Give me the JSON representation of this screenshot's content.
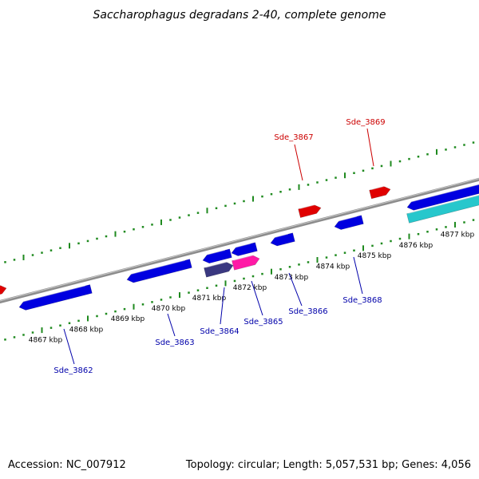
{
  "title": "Saccharophagus degradans 2-40, complete genome",
  "footer": {
    "accession": "Accession: NC_007912",
    "summary": "Topology: circular; Length: 5,057,531 bp; Genes: 4,056"
  },
  "colors": {
    "backbone": "#8c8c8c",
    "tick": "#1f8a1f",
    "forward_gene": "#e00000",
    "reverse_gene": "#0000e0",
    "label_forward": "#cc0000",
    "label_reverse": "#0000aa",
    "cyan_feature": "#27c7cc",
    "pink_feature": "#ff1aa6",
    "dark_feature": "#3a3880"
  },
  "scale": {
    "unit": "kbp",
    "labels": [
      "4867 kbp",
      "4868 kbp",
      "4869 kbp",
      "4870 kbp",
      "4871 kbp",
      "4872 kbp",
      "4873 kbp",
      "4874 kbp",
      "4875 kbp",
      "4876 kbp",
      "4877 kbp"
    ]
  },
  "genes": {
    "forward": [
      "Sde_3867",
      "Sde_3869"
    ],
    "reverse": [
      "Sde_3862",
      "Sde_3863",
      "Sde_3864",
      "Sde_3865",
      "Sde_3866",
      "Sde_3868"
    ]
  }
}
